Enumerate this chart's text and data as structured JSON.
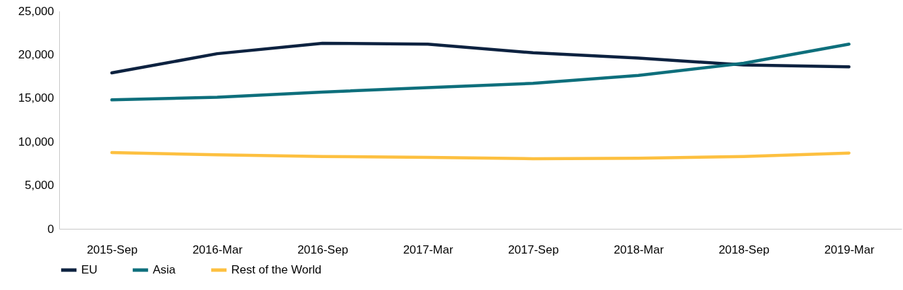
{
  "chart_data": {
    "type": "line",
    "categories": [
      "2015-Sep",
      "2016-Mar",
      "2016-Sep",
      "2017-Mar",
      "2017-Sep",
      "2018-Mar",
      "2018-Sep",
      "2019-Mar"
    ],
    "series": [
      {
        "name": "EU",
        "color": "#0d2240",
        "values": [
          17900,
          20100,
          21300,
          21200,
          20200,
          19600,
          18800,
          18600
        ]
      },
      {
        "name": "Asia",
        "color": "#0e6f7c",
        "values": [
          14800,
          15100,
          15700,
          16200,
          16700,
          17600,
          19000,
          21200
        ]
      },
      {
        "name": "Rest of the World",
        "color": "#fdc040",
        "values": [
          8750,
          8500,
          8300,
          8200,
          8050,
          8100,
          8300,
          8700
        ]
      }
    ],
    "ylim": [
      0,
      25000
    ],
    "yticks": [
      0,
      {
        "value": 5000,
        "label": "5,000"
      },
      {
        "value": 10000,
        "label": "10,000"
      },
      {
        "value": 15000,
        "label": "15,000"
      },
      {
        "value": 20000,
        "label": "20,000"
      },
      {
        "value": 25000,
        "label": "25,000"
      }
    ],
    "grid": false,
    "legend": "bottom",
    "marker": "none",
    "line_style": "solid"
  }
}
